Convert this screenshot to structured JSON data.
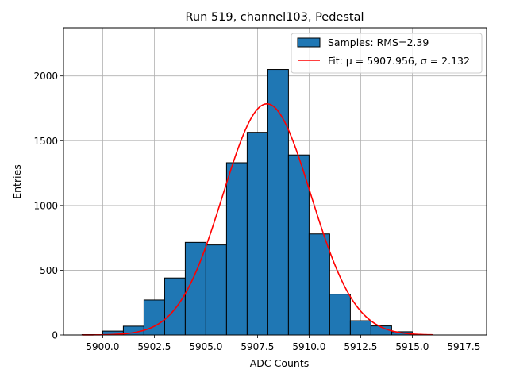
{
  "chart_data": {
    "type": "bar",
    "title": "Run 519, channel103, Pedestal",
    "xlabel": "ADC Counts",
    "ylabel": "Entries",
    "xlim": [
      5898.1,
      5918.6
    ],
    "ylim": [
      0,
      2372
    ],
    "xticks": [
      5900.0,
      5902.5,
      5905.0,
      5907.5,
      5910.0,
      5912.5,
      5915.0,
      5917.5
    ],
    "xtick_labels": [
      "5900.0",
      "5902.5",
      "5905.0",
      "5907.5",
      "5910.0",
      "5912.5",
      "5915.0",
      "5917.5"
    ],
    "yticks": [
      0,
      500,
      1000,
      1500,
      2000
    ],
    "ytick_labels": [
      "0",
      "500",
      "1000",
      "1500",
      "2000"
    ],
    "grid": true,
    "legend_position": "top-right",
    "bins": {
      "edges": [
        5899.0,
        5900.0,
        5901.0,
        5902.0,
        5903.0,
        5904.0,
        5905.0,
        5906.0,
        5907.0,
        5908.0,
        5909.0,
        5910.0,
        5911.0,
        5912.0,
        5913.0,
        5914.0,
        5915.0,
        5916.0,
        5917.0,
        5918.0
      ],
      "counts": [
        3,
        30,
        68,
        270,
        440,
        715,
        695,
        1330,
        1565,
        2050,
        1390,
        780,
        315,
        110,
        70,
        25,
        3,
        0,
        0
      ]
    },
    "series": [
      {
        "name": "Samples: RMS=2.39",
        "kind": "histogram",
        "color": "#1f77b4",
        "edgecolor": "#000000"
      },
      {
        "name": "Fit: μ = 5907.956, σ = 2.132",
        "kind": "gaussian",
        "color": "#ff0000",
        "mu": 5907.956,
        "sigma": 2.132,
        "amplitude": 1785,
        "x_range": [
          5899.0,
          5916.0
        ]
      }
    ]
  }
}
